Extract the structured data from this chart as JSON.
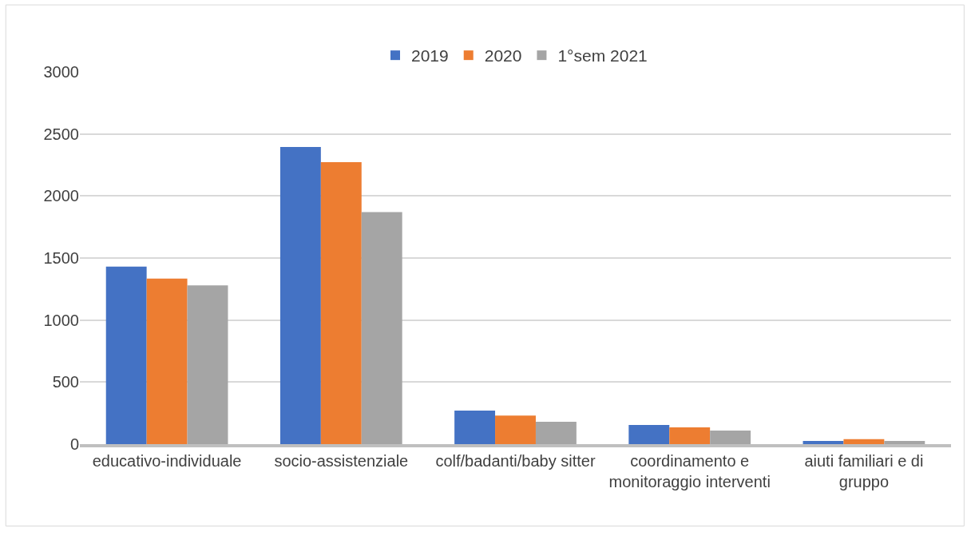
{
  "chart_data": {
    "type": "bar",
    "categories": [
      "educativo-individuale",
      "socio-assistenziale",
      "colf/badanti/baby sitter",
      "coordinamento e monitoraggio interventi",
      "aiuti familiari e di gruppo"
    ],
    "series": [
      {
        "name": "2019",
        "color": "#4472c4",
        "values": [
          1430,
          2395,
          270,
          155,
          25
        ]
      },
      {
        "name": "2020",
        "color": "#ed7d31",
        "values": [
          1335,
          2273,
          230,
          135,
          40
        ]
      },
      {
        "name": "1°sem 2021",
        "color": "#a5a5a5",
        "values": [
          1280,
          1870,
          180,
          110,
          25
        ]
      }
    ],
    "ylim": [
      0,
      3000
    ],
    "yticks": [
      0,
      500,
      1000,
      1500,
      2000,
      2500,
      3000
    ],
    "grid": "y",
    "legend": "top"
  }
}
